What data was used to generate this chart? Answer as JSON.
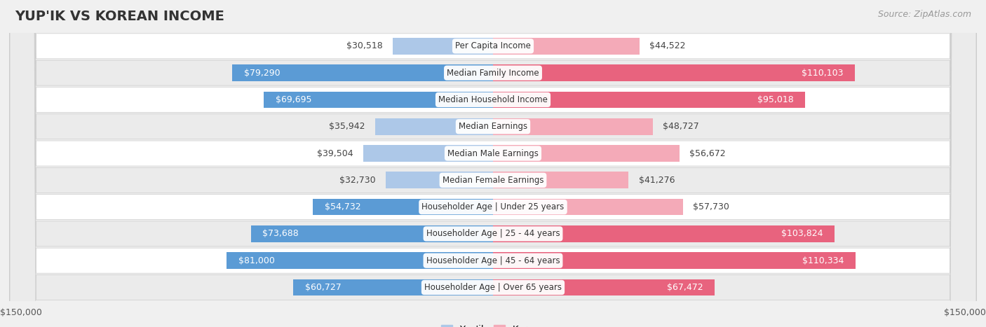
{
  "title": "YUP'IK VS KOREAN INCOME",
  "source": "Source: ZipAtlas.com",
  "categories": [
    "Per Capita Income",
    "Median Family Income",
    "Median Household Income",
    "Median Earnings",
    "Median Male Earnings",
    "Median Female Earnings",
    "Householder Age | Under 25 years",
    "Householder Age | 25 - 44 years",
    "Householder Age | 45 - 64 years",
    "Householder Age | Over 65 years"
  ],
  "yupik_values": [
    30518,
    79290,
    69695,
    35942,
    39504,
    32730,
    54732,
    73688,
    81000,
    60727
  ],
  "korean_values": [
    44522,
    110103,
    95018,
    48727,
    56672,
    41276,
    57730,
    103824,
    110334,
    67472
  ],
  "yupik_labels": [
    "$30,518",
    "$79,290",
    "$69,695",
    "$35,942",
    "$39,504",
    "$32,730",
    "$54,732",
    "$73,688",
    "$81,000",
    "$60,727"
  ],
  "korean_labels": [
    "$44,522",
    "$110,103",
    "$95,018",
    "$48,727",
    "$56,672",
    "$41,276",
    "$57,730",
    "$103,824",
    "$110,334",
    "$67,472"
  ],
  "yupik_color_dark": "#5b9bd5",
  "yupik_color_light": "#adc8e8",
  "korean_color_dark": "#e8637e",
  "korean_color_light": "#f4aab8",
  "max_value": 150000,
  "bg_color": "#f0f0f0",
  "row_colors": [
    "#ffffff",
    "#ebebeb"
  ],
  "bottom_label_left": "$150,000",
  "bottom_label_right": "$150,000",
  "legend_yupik": "Yup'ik",
  "legend_korean": "Korean",
  "title_fontsize": 14,
  "source_fontsize": 9,
  "bar_label_fontsize": 9,
  "category_fontsize": 8.5,
  "yupik_inside_threshold": 45000,
  "korean_inside_threshold": 65000
}
